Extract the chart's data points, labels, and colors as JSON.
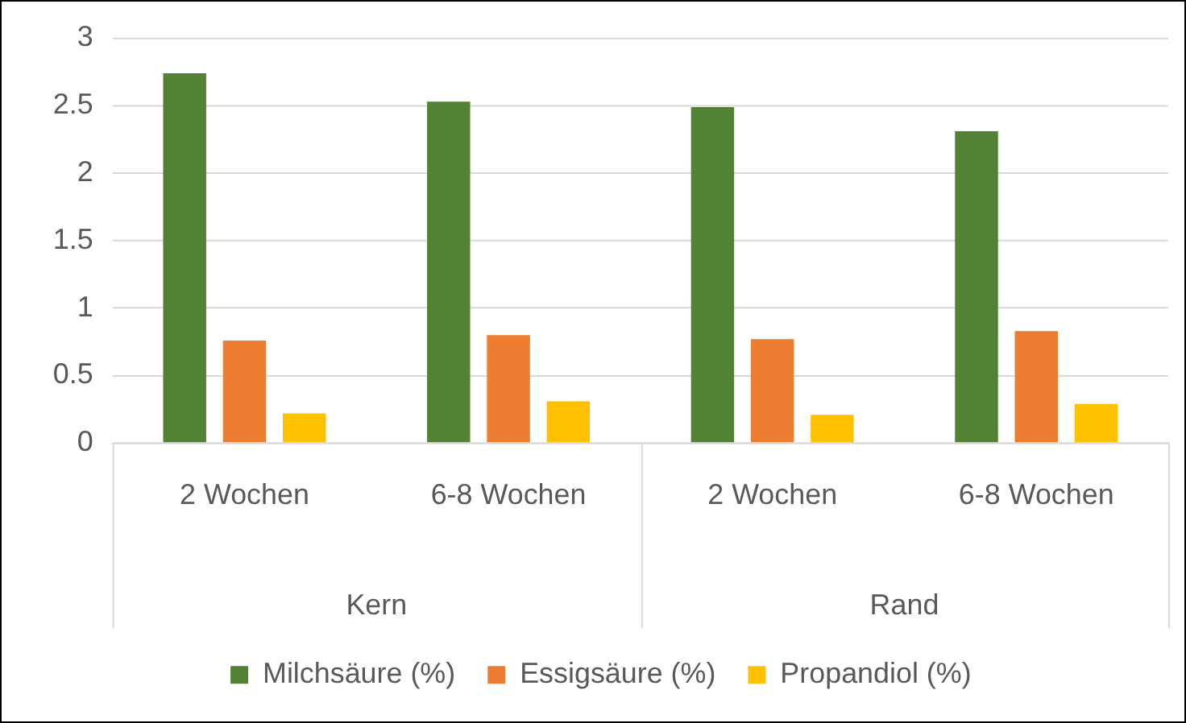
{
  "chart_data": {
    "type": "bar",
    "categories": [
      "2 Wochen",
      "6-8 Wochen",
      "2 Wochen",
      "6-8 Wochen"
    ],
    "series": [
      {
        "name": "Milchsäure (%)",
        "color": "#548235",
        "values": [
          2.74,
          2.53,
          2.49,
          2.31
        ]
      },
      {
        "name": "Essigsäure (%)",
        "color": "#ed7d31",
        "values": [
          0.76,
          0.8,
          0.77,
          0.83
        ]
      },
      {
        "name": "Propandiol (%)",
        "color": "#ffc000",
        "values": [
          0.22,
          0.31,
          0.21,
          0.29
        ]
      }
    ],
    "annotations": [
      "Kern",
      "Rand"
    ],
    "ylim": [
      0,
      3
    ],
    "yticks": [
      0,
      0.5,
      1,
      1.5,
      2,
      2.5,
      3
    ],
    "grid": "y",
    "legend": "bottom"
  }
}
